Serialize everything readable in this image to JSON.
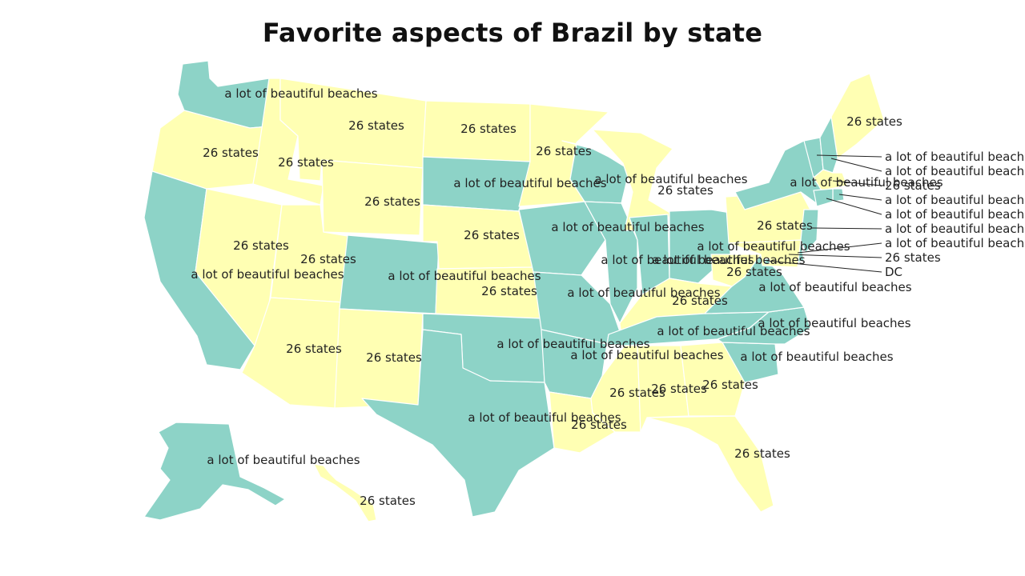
{
  "title": "Favorite aspects of Brazil by state",
  "colors": {
    "beaches": "#8dd3c7",
    "states": "#ffffb3",
    "border": "#ffffff",
    "text": "#222222"
  },
  "categories": [
    "a lot of beautiful beaches",
    "26 states"
  ],
  "states": [
    {
      "id": "WA",
      "value": "a lot of beautiful beaches"
    },
    {
      "id": "OR",
      "value": "26 states"
    },
    {
      "id": "CA",
      "value": "a lot of beautiful beaches"
    },
    {
      "id": "ID",
      "value": "26 states"
    },
    {
      "id": "NV",
      "value": "26 states"
    },
    {
      "id": "UT",
      "value": "26 states"
    },
    {
      "id": "AZ",
      "value": "26 states"
    },
    {
      "id": "MT",
      "value": "26 states"
    },
    {
      "id": "WY",
      "value": "26 states"
    },
    {
      "id": "CO",
      "value": "a lot of beautiful beaches"
    },
    {
      "id": "NM",
      "value": "26 states"
    },
    {
      "id": "ND",
      "value": "26 states"
    },
    {
      "id": "SD",
      "value": "a lot of beautiful beaches"
    },
    {
      "id": "NE",
      "value": "26 states"
    },
    {
      "id": "KS",
      "value": "26 states"
    },
    {
      "id": "OK",
      "value": "a lot of beautiful beaches"
    },
    {
      "id": "TX",
      "value": "a lot of beautiful beaches"
    },
    {
      "id": "MN",
      "value": "26 states"
    },
    {
      "id": "IA",
      "value": "a lot of beautiful beaches"
    },
    {
      "id": "MO",
      "value": "a lot of beautiful beaches"
    },
    {
      "id": "AR",
      "value": "a lot of beautiful beaches"
    },
    {
      "id": "LA",
      "value": "26 states"
    },
    {
      "id": "WI",
      "value": "a lot of beautiful beaches"
    },
    {
      "id": "IL",
      "value": "a lot of beautiful beaches"
    },
    {
      "id": "MI",
      "value": "26 states"
    },
    {
      "id": "IN",
      "value": "a lot of beautiful beaches"
    },
    {
      "id": "OH",
      "value": "a lot of beautiful beaches"
    },
    {
      "id": "KY",
      "value": "26 states"
    },
    {
      "id": "TN",
      "value": "a lot of beautiful beaches"
    },
    {
      "id": "MS",
      "value": "26 states"
    },
    {
      "id": "AL",
      "value": "26 states"
    },
    {
      "id": "GA",
      "value": "26 states"
    },
    {
      "id": "FL",
      "value": "26 states"
    },
    {
      "id": "SC",
      "value": "a lot of beautiful beaches"
    },
    {
      "id": "NC",
      "value": "a lot of beautiful beaches"
    },
    {
      "id": "VA",
      "value": "a lot of beautiful beaches"
    },
    {
      "id": "WV",
      "value": "26 states"
    },
    {
      "id": "PA",
      "value": "26 states"
    },
    {
      "id": "NY",
      "value": "a lot of beautiful beaches"
    },
    {
      "id": "ME",
      "value": "26 states"
    },
    {
      "id": "VT",
      "value": "a lot of beautiful beaches"
    },
    {
      "id": "NH",
      "value": "a lot of beautiful beaches"
    },
    {
      "id": "MA",
      "value": "26 states"
    },
    {
      "id": "RI",
      "value": "a lot of beautiful beaches"
    },
    {
      "id": "CT",
      "value": "a lot of beautiful beaches"
    },
    {
      "id": "NJ",
      "value": "a lot of beautiful beaches"
    },
    {
      "id": "DE",
      "value": "a lot of beautiful beaches"
    },
    {
      "id": "MD",
      "value": "26 states"
    },
    {
      "id": "DC",
      "value": "DC"
    },
    {
      "id": "AK",
      "value": "a lot of beautiful beaches"
    },
    {
      "id": "HI",
      "value": "26 states"
    }
  ]
}
